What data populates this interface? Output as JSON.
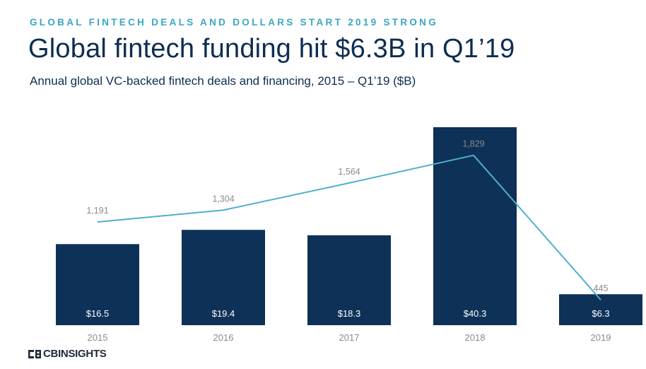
{
  "header": {
    "kicker": "GLOBAL FINTECH DEALS AND DOLLARS START 2019 STRONG",
    "title": "Global fintech funding hit $6.3B in Q1’19",
    "subtitle": "Annual global VC-backed fintech deals and financing, 2015 – Q1’19 ($B)"
  },
  "brand": {
    "name": "CBINSIGHTS"
  },
  "colors": {
    "bar": "#0e3158",
    "line": "#4fb0cc",
    "axis_text": "#8a8a8a",
    "bar_label": "#ffffff"
  },
  "chart_data": {
    "type": "bar",
    "categories": [
      "2015",
      "2016",
      "2017",
      "2018",
      "2019"
    ],
    "series": [
      {
        "name": "Funding ($B)",
        "kind": "bar",
        "values": [
          16.5,
          19.4,
          18.3,
          40.3,
          6.3
        ],
        "labels": [
          "$16.5",
          "$19.4",
          "$18.3",
          "$40.3",
          "$6.3"
        ]
      },
      {
        "name": "Deals",
        "kind": "line",
        "values": [
          1191,
          1304,
          1564,
          1829,
          445
        ],
        "labels": [
          "1,191",
          "1,304",
          "1,564",
          "1,829",
          "445"
        ]
      }
    ],
    "title": "",
    "xlabel": "",
    "ylabel": "",
    "grid": false
  }
}
